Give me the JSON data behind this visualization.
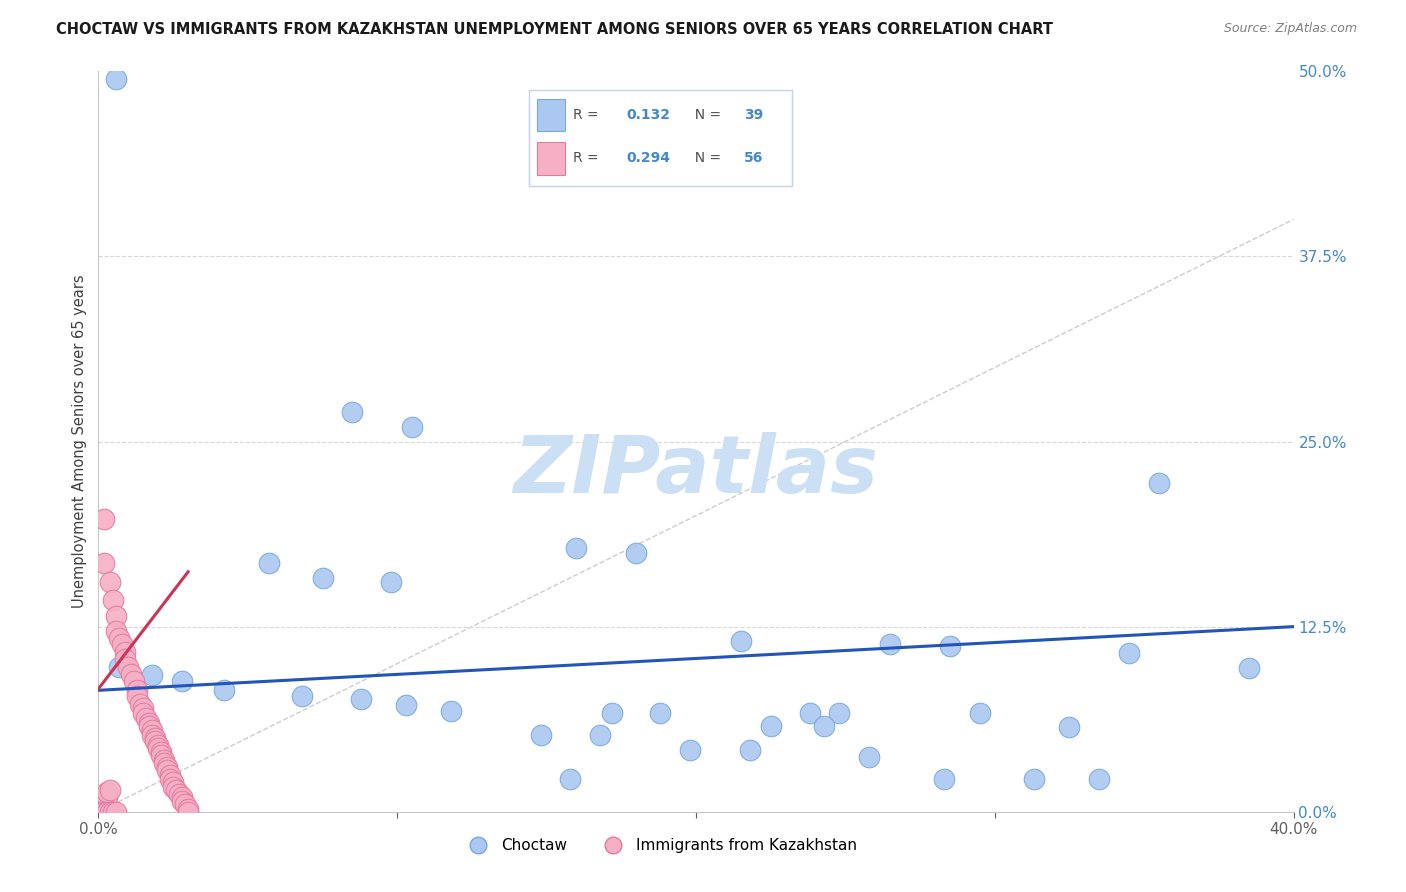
{
  "title": "CHOCTAW VS IMMIGRANTS FROM KAZAKHSTAN UNEMPLOYMENT AMONG SENIORS OVER 65 YEARS CORRELATION CHART",
  "source": "Source: ZipAtlas.com",
  "ylabel": "Unemployment Among Seniors over 65 years",
  "background_color": "#ffffff",
  "choctaw_color": "#aac8f0",
  "choctaw_edge_color": "#78aae0",
  "kazakhstan_color": "#f5b0c5",
  "kazakhstan_edge_color": "#e878a0",
  "trend_blue_color": "#2255bb",
  "trend_pink_color": "#cc3355",
  "R_choctaw": 0.132,
  "N_choctaw": 39,
  "R_kazakhstan": 0.294,
  "N_kazakhstan": 56,
  "xlim": [
    0.0,
    0.4
  ],
  "ylim": [
    0.0,
    0.5
  ],
  "yticks": [
    0.0,
    0.125,
    0.25,
    0.375,
    0.5
  ],
  "ytick_labels": [
    "0.0%",
    "12.5%",
    "25.0%",
    "37.5%",
    "50.0%"
  ],
  "xticks": [
    0.0,
    0.1,
    0.2,
    0.3,
    0.4
  ],
  "xtick_labels": [
    "0.0%",
    "",
    "",
    "",
    "40.0%"
  ],
  "choctaw_points": [
    [
      0.006,
      0.495
    ],
    [
      0.085,
      0.27
    ],
    [
      0.105,
      0.26
    ],
    [
      0.16,
      0.178
    ],
    [
      0.18,
      0.175
    ],
    [
      0.057,
      0.168
    ],
    [
      0.075,
      0.158
    ],
    [
      0.098,
      0.155
    ],
    [
      0.355,
      0.222
    ],
    [
      0.215,
      0.115
    ],
    [
      0.265,
      0.113
    ],
    [
      0.285,
      0.112
    ],
    [
      0.345,
      0.107
    ],
    [
      0.385,
      0.097
    ],
    [
      0.007,
      0.098
    ],
    [
      0.018,
      0.092
    ],
    [
      0.028,
      0.088
    ],
    [
      0.042,
      0.082
    ],
    [
      0.068,
      0.078
    ],
    [
      0.088,
      0.076
    ],
    [
      0.103,
      0.072
    ],
    [
      0.118,
      0.068
    ],
    [
      0.172,
      0.067
    ],
    [
      0.188,
      0.067
    ],
    [
      0.238,
      0.067
    ],
    [
      0.248,
      0.067
    ],
    [
      0.295,
      0.067
    ],
    [
      0.325,
      0.057
    ],
    [
      0.225,
      0.058
    ],
    [
      0.243,
      0.058
    ],
    [
      0.148,
      0.052
    ],
    [
      0.168,
      0.052
    ],
    [
      0.198,
      0.042
    ],
    [
      0.218,
      0.042
    ],
    [
      0.258,
      0.037
    ],
    [
      0.283,
      0.022
    ],
    [
      0.313,
      0.022
    ],
    [
      0.335,
      0.022
    ],
    [
      0.158,
      0.022
    ]
  ],
  "kazakhstan_points": [
    [
      0.002,
      0.198
    ],
    [
      0.002,
      0.168
    ],
    [
      0.004,
      0.155
    ],
    [
      0.005,
      0.143
    ],
    [
      0.006,
      0.132
    ],
    [
      0.006,
      0.122
    ],
    [
      0.007,
      0.117
    ],
    [
      0.008,
      0.113
    ],
    [
      0.009,
      0.108
    ],
    [
      0.009,
      0.103
    ],
    [
      0.01,
      0.098
    ],
    [
      0.011,
      0.093
    ],
    [
      0.012,
      0.088
    ],
    [
      0.013,
      0.082
    ],
    [
      0.013,
      0.078
    ],
    [
      0.014,
      0.073
    ],
    [
      0.015,
      0.07
    ],
    [
      0.015,
      0.067
    ],
    [
      0.016,
      0.063
    ],
    [
      0.017,
      0.06
    ],
    [
      0.017,
      0.058
    ],
    [
      0.018,
      0.055
    ],
    [
      0.018,
      0.052
    ],
    [
      0.019,
      0.05
    ],
    [
      0.019,
      0.048
    ],
    [
      0.02,
      0.045
    ],
    [
      0.02,
      0.043
    ],
    [
      0.021,
      0.04
    ],
    [
      0.021,
      0.038
    ],
    [
      0.022,
      0.035
    ],
    [
      0.022,
      0.033
    ],
    [
      0.023,
      0.03
    ],
    [
      0.023,
      0.028
    ],
    [
      0.024,
      0.025
    ],
    [
      0.024,
      0.022
    ],
    [
      0.025,
      0.02
    ],
    [
      0.025,
      0.017
    ],
    [
      0.026,
      0.015
    ],
    [
      0.027,
      0.012
    ],
    [
      0.028,
      0.01
    ],
    [
      0.028,
      0.007
    ],
    [
      0.029,
      0.005
    ],
    [
      0.03,
      0.002
    ],
    [
      0.001,
      0.002
    ],
    [
      0.001,
      0.005
    ],
    [
      0.002,
      0.008
    ],
    [
      0.003,
      0.01
    ],
    [
      0.003,
      0.013
    ],
    [
      0.004,
      0.015
    ],
    [
      0.03,
      0.0
    ],
    [
      0.001,
      0.0
    ],
    [
      0.002,
      0.0
    ],
    [
      0.003,
      0.0
    ],
    [
      0.004,
      0.0
    ],
    [
      0.005,
      0.0
    ],
    [
      0.006,
      0.0
    ]
  ],
  "watermark_text": "ZIPatlas",
  "watermark_color": "#cce0f5",
  "diag_line_color": "#c0c0c0",
  "grid_color": "#d8d8d8",
  "legend_accent_color": "#4488cc"
}
